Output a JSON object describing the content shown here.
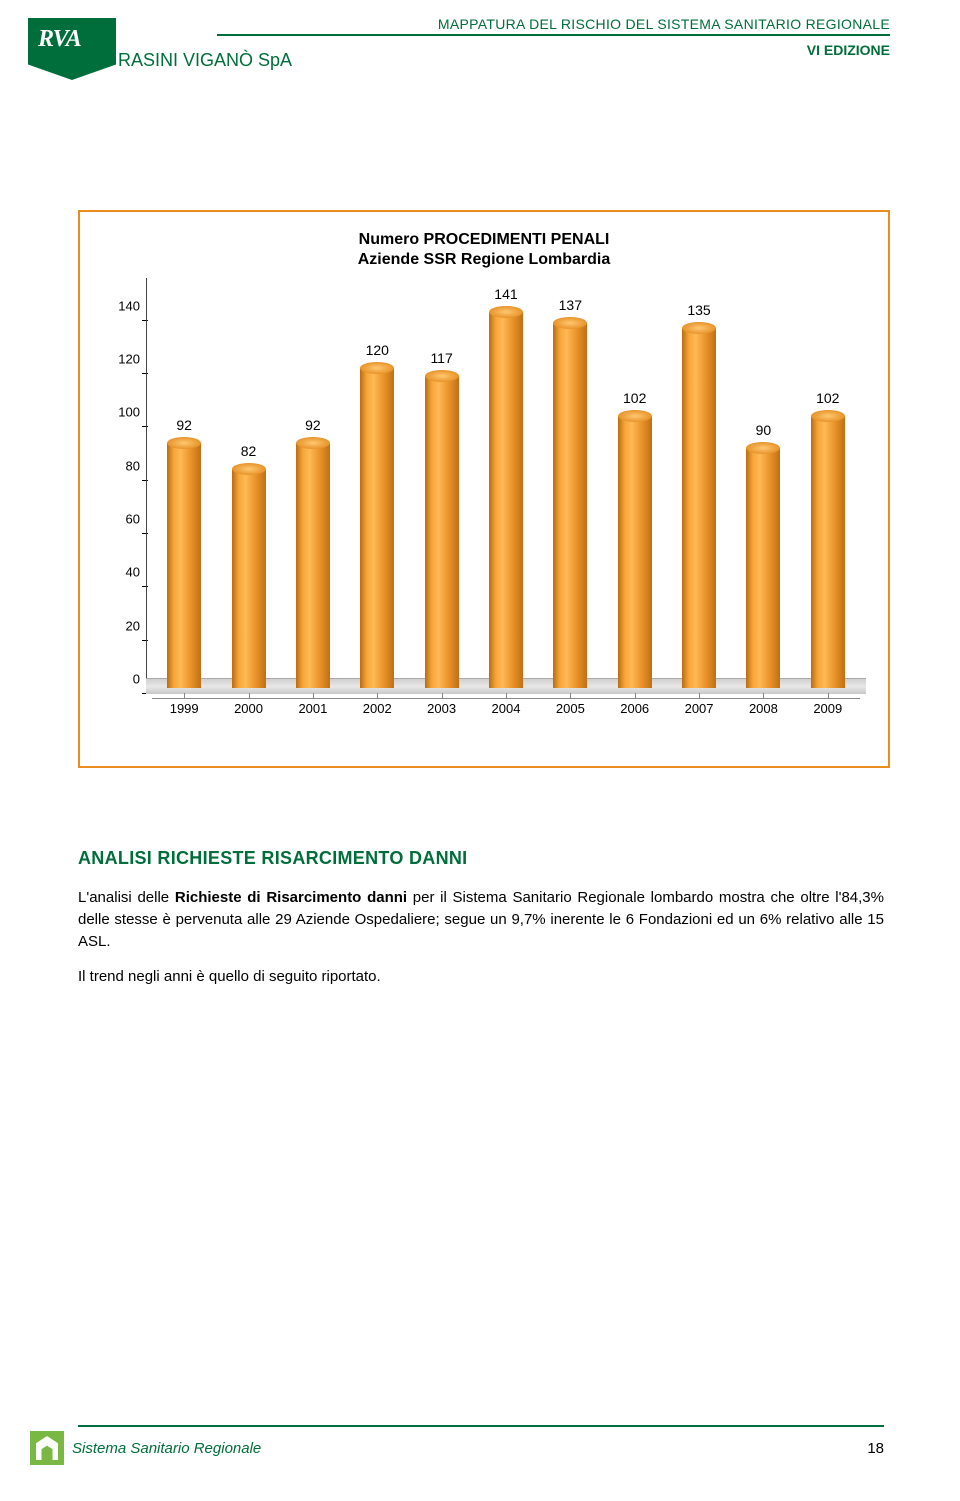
{
  "header": {
    "logo_letters": "RVA",
    "company_name": "RASINI VIGANÒ SpA",
    "doc_title": "MAPPATURA DEL RISCHIO DEL SISTEMA SANITARIO REGIONALE",
    "edition": "VI EDIZIONE"
  },
  "chart": {
    "type": "bar-cylinder",
    "title_line1": "Numero PROCEDIMENTI PENALI",
    "title_line2": "Aziende SSR Regione Lombardia",
    "categories": [
      "1999",
      "2000",
      "2001",
      "2002",
      "2003",
      "2004",
      "2005",
      "2006",
      "2007",
      "2008",
      "2009"
    ],
    "values": [
      92,
      82,
      92,
      120,
      117,
      141,
      137,
      102,
      135,
      90,
      102
    ],
    "y_ticks": [
      0,
      20,
      40,
      60,
      80,
      100,
      120,
      140
    ],
    "ylim": [
      0,
      150
    ],
    "bar_color_light": "#ffb954",
    "bar_color_dark": "#c06f14",
    "border_color": "#eb8c1f",
    "title_fontsize": 16,
    "label_fontsize": 14,
    "tick_fontsize": 13
  },
  "section": {
    "heading": "ANALISI RICHIESTE RISARCIMENTO DANNI",
    "para1_a": "L'analisi delle ",
    "para1_b": "Richieste di Risarcimento danni",
    "para1_c": " per il Sistema Sanitario Regionale lombardo mostra che oltre l'84,3% delle stesse è pervenuta alle 29 Aziende Ospedaliere; segue un 9,7% inerente le 6 Fondazioni ed un 6% relativo alle 15 ASL.",
    "para2": "Il trend negli anni è quello di seguito riportato."
  },
  "footer": {
    "text": "Sistema Sanitario Regionale",
    "page": "18"
  },
  "colors": {
    "brand_green": "#006e3a",
    "light_green": "#78b843"
  }
}
